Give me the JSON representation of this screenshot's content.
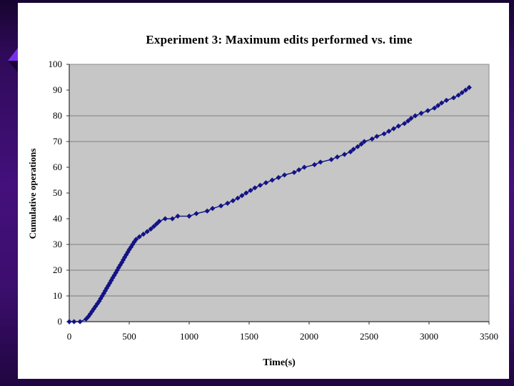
{
  "slide": {
    "background_accent": "#44107c",
    "decoration": {
      "arrow_bright_color": "#7a30ea",
      "arrow_dark_color": "#190233"
    }
  },
  "chart_data": {
    "type": "scatter",
    "title": "Experiment 3: Maximum edits performed vs. time",
    "xlabel": "Time(s)",
    "ylabel": "Cumulative operations",
    "xlim": [
      0,
      3500
    ],
    "ylim": [
      0,
      100
    ],
    "x_ticks": [
      0,
      500,
      1000,
      1500,
      2000,
      2500,
      3000,
      3500
    ],
    "y_ticks": [
      0,
      10,
      20,
      30,
      40,
      50,
      60,
      70,
      80,
      90,
      100
    ],
    "visible_gridlines_y": [
      10,
      20,
      30,
      70,
      80
    ],
    "grid": "partial-horizontal",
    "legend": "none",
    "plot_bg_color": "#c6c6c6",
    "gridline_color": "#7f7f7f",
    "axis_color": "#303030",
    "series": [
      {
        "name": "Maximum edits performed",
        "color": "#131384",
        "marker": "diamond",
        "points": [
          [
            0,
            0
          ],
          [
            40,
            0
          ],
          [
            90,
            0
          ],
          [
            140,
            1
          ],
          [
            160,
            2
          ],
          [
            175,
            3
          ],
          [
            190,
            4
          ],
          [
            205,
            5
          ],
          [
            220,
            6
          ],
          [
            235,
            7
          ],
          [
            250,
            8
          ],
          [
            262,
            9
          ],
          [
            275,
            10
          ],
          [
            288,
            11
          ],
          [
            300,
            12
          ],
          [
            312,
            13
          ],
          [
            325,
            14
          ],
          [
            338,
            15
          ],
          [
            350,
            16
          ],
          [
            362,
            17
          ],
          [
            375,
            18
          ],
          [
            388,
            19
          ],
          [
            400,
            20
          ],
          [
            412,
            21
          ],
          [
            425,
            22
          ],
          [
            438,
            23
          ],
          [
            450,
            24
          ],
          [
            462,
            25
          ],
          [
            475,
            26
          ],
          [
            488,
            27
          ],
          [
            500,
            28
          ],
          [
            515,
            29
          ],
          [
            528,
            30
          ],
          [
            542,
            31
          ],
          [
            558,
            32
          ],
          [
            585,
            33
          ],
          [
            618,
            34
          ],
          [
            650,
            35
          ],
          [
            680,
            36
          ],
          [
            705,
            37
          ],
          [
            728,
            38
          ],
          [
            750,
            39
          ],
          [
            800,
            40
          ],
          [
            860,
            40
          ],
          [
            905,
            41
          ],
          [
            1000,
            41
          ],
          [
            1060,
            42
          ],
          [
            1150,
            43
          ],
          [
            1195,
            44
          ],
          [
            1265,
            45
          ],
          [
            1320,
            46
          ],
          [
            1365,
            47
          ],
          [
            1405,
            48
          ],
          [
            1440,
            49
          ],
          [
            1475,
            50
          ],
          [
            1512,
            51
          ],
          [
            1548,
            52
          ],
          [
            1592,
            53
          ],
          [
            1640,
            54
          ],
          [
            1692,
            55
          ],
          [
            1745,
            56
          ],
          [
            1795,
            57
          ],
          [
            1875,
            58
          ],
          [
            1915,
            59
          ],
          [
            1960,
            60
          ],
          [
            2045,
            61
          ],
          [
            2095,
            62
          ],
          [
            2185,
            63
          ],
          [
            2235,
            64
          ],
          [
            2295,
            65
          ],
          [
            2345,
            66
          ],
          [
            2370,
            67
          ],
          [
            2405,
            68
          ],
          [
            2435,
            69
          ],
          [
            2460,
            70
          ],
          [
            2525,
            71
          ],
          [
            2565,
            72
          ],
          [
            2625,
            73
          ],
          [
            2665,
            74
          ],
          [
            2705,
            75
          ],
          [
            2745,
            76
          ],
          [
            2795,
            77
          ],
          [
            2825,
            78
          ],
          [
            2850,
            79
          ],
          [
            2885,
            80
          ],
          [
            2935,
            81
          ],
          [
            2990,
            82
          ],
          [
            3045,
            83
          ],
          [
            3075,
            84
          ],
          [
            3105,
            85
          ],
          [
            3145,
            86
          ],
          [
            3205,
            87
          ],
          [
            3245,
            88
          ],
          [
            3275,
            89
          ],
          [
            3305,
            90
          ],
          [
            3335,
            91
          ]
        ]
      }
    ]
  }
}
